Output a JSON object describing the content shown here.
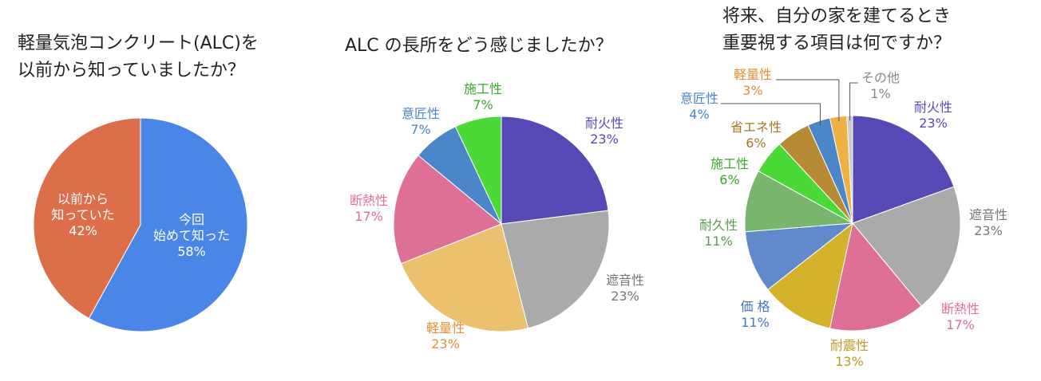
{
  "chart_data": [
    {
      "type": "pie",
      "title": "軽量気泡コンクリート(ALC)を\n以前から知っていましたか？",
      "categories": [
        "今回\n始めて知った",
        "以前から\n知っていた"
      ],
      "values": [
        58,
        42
      ],
      "value_labels": [
        "58%",
        "42%"
      ],
      "colors": [
        "#4a86e8",
        "#dd6e4a"
      ],
      "label_colors": [
        "#ffffff",
        "#ffffff"
      ]
    },
    {
      "type": "pie",
      "title": "ALC の長所をどう感じましたか？",
      "categories": [
        "耐火性",
        "遮音性",
        "軽量性",
        "断熱性",
        "意匠性",
        "施工性"
      ],
      "values": [
        23,
        23,
        23,
        17,
        7,
        7
      ],
      "value_labels": [
        "23%",
        "23%",
        "23%",
        "17%",
        "7%",
        "7%"
      ],
      "colors": [
        "#5649b5",
        "#aaaaaa",
        "#ecc16e",
        "#de6f96",
        "#4a86c8",
        "#4ad937"
      ],
      "label_colors": [
        "#5649b5",
        "#777777",
        "#e0913a",
        "#de6f96",
        "#4a86c8",
        "#3aa82a"
      ]
    },
    {
      "type": "pie",
      "title": "将来、自分の家を建てるとき\n重要視する項目は何ですか？",
      "categories": [
        "耐火性",
        "遮音性",
        "断熱性",
        "耐震性",
        "価 格",
        "耐久性",
        "施工性",
        "省エネ性",
        "意匠性",
        "軽量性",
        "その他"
      ],
      "values": [
        23,
        23,
        17,
        13,
        11,
        11,
        6,
        6,
        4,
        3,
        1
      ],
      "value_labels": [
        "23%",
        "23%",
        "17%",
        "13%",
        "11%",
        "11%",
        "6%",
        "6%",
        "4%",
        "3%",
        "1%"
      ],
      "colors": [
        "#5649b5",
        "#aaaaaa",
        "#de6f96",
        "#d4b22c",
        "#6189cc",
        "#7ab56e",
        "#4ad937",
        "#b78a35",
        "#4a86c8",
        "#eeb244",
        "#cccccc"
      ],
      "label_colors": [
        "#5649b5",
        "#777777",
        "#de6f96",
        "#c09a20",
        "#4a76c0",
        "#5a9a4e",
        "#3aa82a",
        "#a27828",
        "#4a86c8",
        "#e0913a",
        "#888888"
      ]
    }
  ]
}
